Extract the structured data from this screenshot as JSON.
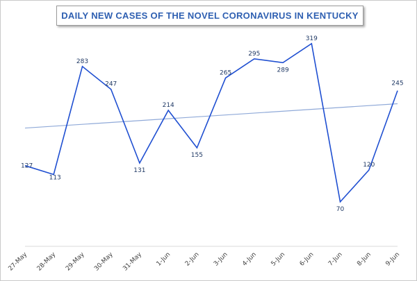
{
  "chart_data": {
    "type": "line",
    "title": "DAILY NEW CASES OF THE NOVEL CORONAVIRUS IN KENTUCKY",
    "categories": [
      "27-May",
      "28-May",
      "29-May",
      "30-May",
      "31-May",
      "1-Jun",
      "2-Jun",
      "3-Jun",
      "4-Jun",
      "5-Jun",
      "6-Jun",
      "7-Jun",
      "8-Jun",
      "9-Jun"
    ],
    "series": [
      {
        "values": [
          127,
          113,
          283,
          247,
          131,
          214,
          155,
          265,
          295,
          289,
          319,
          70,
          120,
          245
        ],
        "color": "#1f4fd1"
      }
    ],
    "trendline": {
      "type": "linear",
      "color": "#8fa9d8"
    },
    "data_labels": true,
    "ylim": [
      0,
      340
    ],
    "grid": false,
    "legend": "none"
  }
}
